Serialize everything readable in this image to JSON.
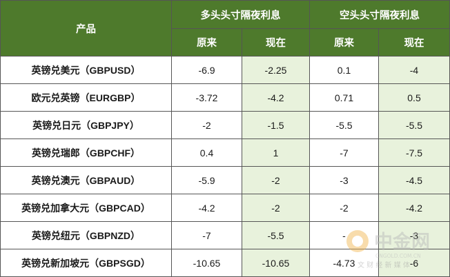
{
  "header": {
    "product_label": "产品",
    "long_group": "多头头寸隔夜利息",
    "short_group": "空头头寸隔夜利息",
    "long_before": "原来",
    "long_after": "现在",
    "short_before": "原来",
    "short_after": "现在"
  },
  "rows": [
    {
      "product": "英镑兑美元（GBPUSD）",
      "long_before": "-6.9",
      "long_after": "-2.25",
      "short_before": "0.1",
      "short_after": "-4"
    },
    {
      "product": "欧元兑英镑（EURGBP）",
      "long_before": "-3.72",
      "long_after": "-4.2",
      "short_before": "0.71",
      "short_after": "0.5"
    },
    {
      "product": "英镑兑日元（GBPJPY）",
      "long_before": "-2",
      "long_after": "-1.5",
      "short_before": "-5.5",
      "short_after": "-5.5"
    },
    {
      "product": "英镑兑瑞郎（GBPCHF）",
      "long_before": "0.4",
      "long_after": "1",
      "short_before": "-7",
      "short_after": "-7.5"
    },
    {
      "product": "英镑兑澳元（GBPAUD）",
      "long_before": "-5.9",
      "long_after": "-2",
      "short_before": "-3",
      "short_after": "-4.5"
    },
    {
      "product": "英镑兑加拿大元（GBPCAD）",
      "long_before": "-4.2",
      "long_after": "-2",
      "short_before": "-2",
      "short_after": "-4.2"
    },
    {
      "product": "英镑兑纽元（GBPNZD）",
      "long_before": "-7",
      "long_after": "-5.5",
      "short_before": "-",
      "short_after": "-3"
    },
    {
      "product": "英镑兑新加坡元（GBPSGD）",
      "long_before": "-10.65",
      "long_after": "-10.65",
      "short_before": "-4.73",
      "short_after": "-6"
    }
  ],
  "watermark": {
    "name": "中金网",
    "domain": "CNGOLD.COM.CN",
    "slogan": "文 财 经 新 媒 体"
  },
  "colors": {
    "header_bg": "#4e7a2c",
    "highlight_bg": "#e8f2dc",
    "border": "#555555"
  }
}
